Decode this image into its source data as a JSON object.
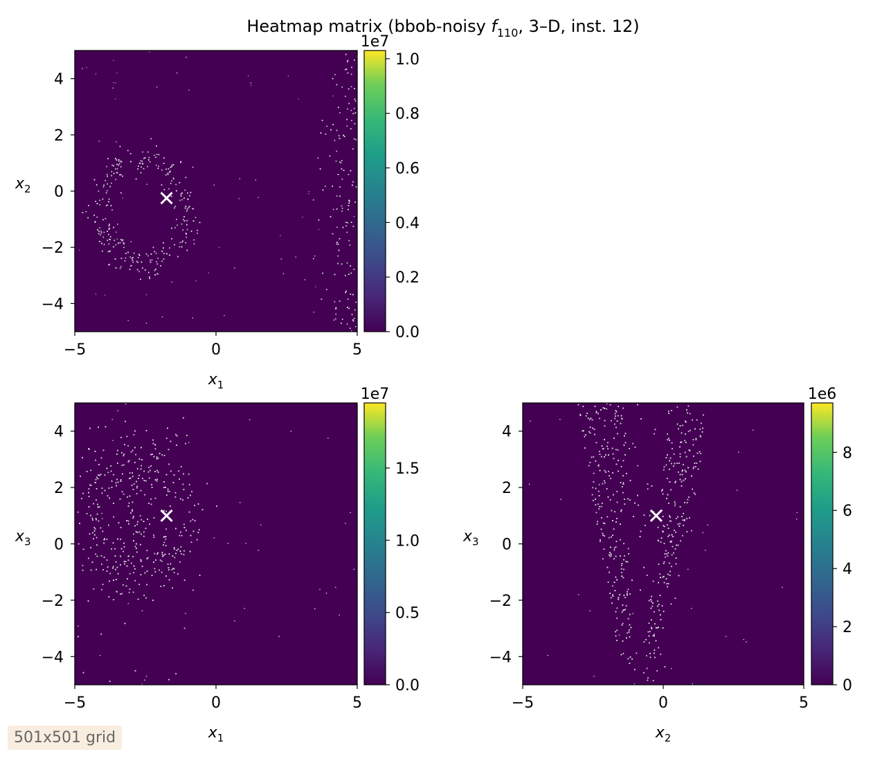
{
  "figure": {
    "title_pre": "Heatmap matrix (bbob-noisy ",
    "title_fn": "f",
    "title_fn_sub": "110",
    "title_post": ", 3–D, inst. 12)"
  },
  "grid_badge": "501x501 grid",
  "colormap": "viridis",
  "colors": {
    "noise_speckle": "#dcdcdc",
    "marker": "#ffffff",
    "low": "#440154",
    "high": "#fde725"
  },
  "chart_data": [
    {
      "type": "heatmap",
      "id": "x1-x2",
      "xlabel": "x",
      "xlabel_sub": "1",
      "ylabel": "x",
      "ylabel_sub": "2",
      "xlim": [
        -5,
        5
      ],
      "ylim": [
        -5,
        5
      ],
      "xticks": [
        -5,
        0,
        5
      ],
      "xtick_labels": [
        "−5",
        "0",
        "5"
      ],
      "yticks": [
        -4,
        -2,
        0,
        2,
        4
      ],
      "ytick_labels": [
        "−4",
        "−2",
        "0",
        "2",
        "4"
      ],
      "optimum": [
        -1.75,
        -0.25
      ],
      "colorbar": {
        "min": 0.0,
        "max": 1.03,
        "exponent": "1e7",
        "ticks": [
          0.0,
          0.2,
          0.4,
          0.6,
          0.8,
          1.0
        ],
        "tick_labels": [
          "0.0",
          "0.2",
          "0.4",
          "0.6",
          "0.8",
          "1.0"
        ]
      },
      "shape": "ring-triangle"
    },
    {
      "type": "heatmap",
      "id": "x1-x3",
      "xlabel": "x",
      "xlabel_sub": "1",
      "ylabel": "x",
      "ylabel_sub": "3",
      "xlim": [
        -5,
        5
      ],
      "ylim": [
        -5,
        5
      ],
      "xticks": [
        -5,
        0,
        5
      ],
      "xtick_labels": [
        "−5",
        "0",
        "5"
      ],
      "yticks": [
        -4,
        -2,
        0,
        2,
        4
      ],
      "ytick_labels": [
        "−4",
        "−2",
        "0",
        "2",
        "4"
      ],
      "optimum": [
        -1.75,
        1.0
      ],
      "colorbar": {
        "min": 0.0,
        "max": 1.95,
        "exponent": "1e7",
        "ticks": [
          0.0,
          0.5,
          1.0,
          1.5
        ],
        "tick_labels": [
          "0.0",
          "0.5",
          "1.0",
          "1.5"
        ]
      },
      "shape": "ring-double"
    },
    {
      "type": "heatmap",
      "id": "x2-x3",
      "xlabel": "x",
      "xlabel_sub": "2",
      "ylabel": "x",
      "ylabel_sub": "3",
      "xlim": [
        -5,
        5
      ],
      "ylim": [
        -5,
        5
      ],
      "xticks": [
        -5,
        0,
        5
      ],
      "xtick_labels": [
        "−5",
        "0",
        "5"
      ],
      "yticks": [
        -4,
        -2,
        0,
        2,
        4
      ],
      "ytick_labels": [
        "−4",
        "−2",
        "0",
        "2",
        "4"
      ],
      "optimum": [
        -0.25,
        1.0
      ],
      "colorbar": {
        "min": 0,
        "max": 9.7,
        "exponent": "1e6",
        "ticks": [
          0,
          2,
          4,
          6,
          8
        ],
        "tick_labels": [
          "0",
          "2",
          "4",
          "6",
          "8"
        ]
      },
      "shape": "valley"
    }
  ]
}
